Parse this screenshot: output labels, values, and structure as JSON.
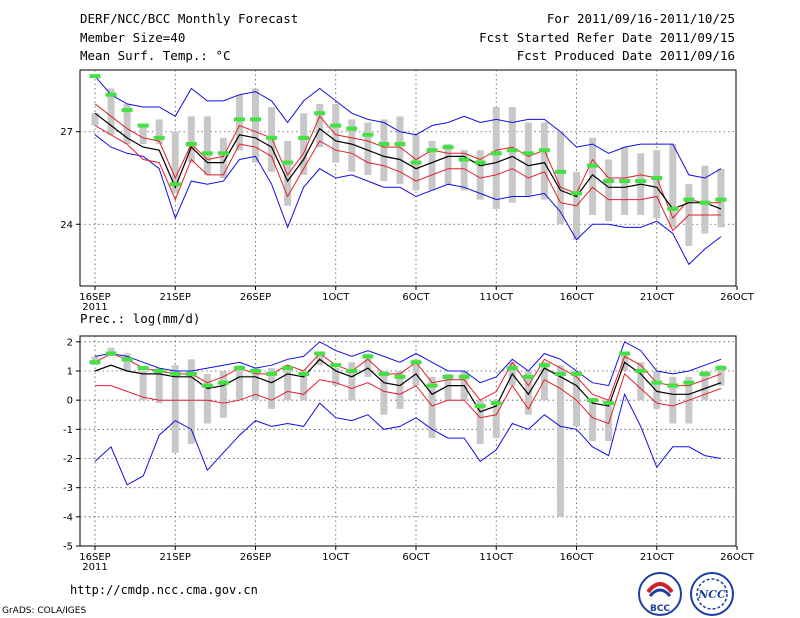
{
  "header": {
    "title": "DERF/NCC/BCC Monthly Forecast",
    "member": "Member Size=40",
    "variable": "Mean Surf. Temp.: °C",
    "period": "For 2011/09/16-2011/10/25",
    "started": "Fcst Started Refer Date 2011/09/15",
    "produced": "Fcst Produced Date 2011/09/16"
  },
  "footer": {
    "url": "http://cmdp.ncc.cma.gov.cn",
    "credit": "GrADS: COLA/IGES",
    "logo_left": "BCC",
    "logo_right": "NCC"
  },
  "colors": {
    "ensemble_mean": "#000000",
    "spread": "#e0202a",
    "extreme": "#1010e0",
    "observed_bar": "#c8c8c8",
    "climate": "#44e044"
  },
  "chart_data": [
    {
      "type": "line",
      "title": "Mean Surf. Temp.: °C",
      "ylim": [
        22,
        29
      ],
      "yticks": [
        24,
        27
      ],
      "xlabel": "",
      "xticks": [
        {
          "day": 0,
          "label": "16SEP",
          "sub": "2011"
        },
        {
          "day": 5,
          "label": "21SEP"
        },
        {
          "day": 10,
          "label": "26SEP"
        },
        {
          "day": 15,
          "label": "1OCT"
        },
        {
          "day": 20,
          "label": "6OCT"
        },
        {
          "day": 25,
          "label": "11OCT"
        },
        {
          "day": 30,
          "label": "16OCT"
        },
        {
          "day": 35,
          "label": "21OCT"
        },
        {
          "day": 40,
          "label": "26OCT"
        }
      ],
      "series": [
        {
          "name": "max",
          "values": [
            28.8,
            28.2,
            27.9,
            27.8,
            27.8,
            27.5,
            28.4,
            28.0,
            28.0,
            28.2,
            28.3,
            28.0,
            27.3,
            28.0,
            28.4,
            28.0,
            27.6,
            27.4,
            27.3,
            27.0,
            26.9,
            27.2,
            27.3,
            27.5,
            27.3,
            27.4,
            27.3,
            27.4,
            27.4,
            27.0,
            26.5,
            26.6,
            26.3,
            26.5,
            26.6,
            26.6,
            26.6,
            25.6,
            25.5,
            25.8
          ]
        },
        {
          "name": "upper",
          "values": [
            27.9,
            27.5,
            27.1,
            26.8,
            26.7,
            25.5,
            26.6,
            26.1,
            26.2,
            27.2,
            27.0,
            26.8,
            25.6,
            26.3,
            27.5,
            26.9,
            26.8,
            26.7,
            26.5,
            26.5,
            26.1,
            26.4,
            26.3,
            26.3,
            26.1,
            26.4,
            26.5,
            26.2,
            26.4,
            25.2,
            25.0,
            26.1,
            25.5,
            25.5,
            25.6,
            25.5,
            24.2,
            24.8,
            24.7,
            24.7
          ]
        },
        {
          "name": "mean",
          "values": [
            27.6,
            27.2,
            26.8,
            26.5,
            26.4,
            25.2,
            26.5,
            26.0,
            26.0,
            26.9,
            26.8,
            26.5,
            25.4,
            26.1,
            27.1,
            26.7,
            26.6,
            26.4,
            26.2,
            26.1,
            25.8,
            26.0,
            26.2,
            26.2,
            25.9,
            26.0,
            26.2,
            25.9,
            26.0,
            25.1,
            24.9,
            25.6,
            25.2,
            25.2,
            25.3,
            25.2,
            24.5,
            24.7,
            24.7,
            24.5
          ]
        },
        {
          "name": "lower",
          "values": [
            27.2,
            26.9,
            26.6,
            26.1,
            26.0,
            24.8,
            26.1,
            25.6,
            25.6,
            26.6,
            26.5,
            26.2,
            24.9,
            25.8,
            26.7,
            26.4,
            26.3,
            26.0,
            25.9,
            25.7,
            25.4,
            25.6,
            25.8,
            25.8,
            25.5,
            25.6,
            25.8,
            25.5,
            25.7,
            24.7,
            24.6,
            25.2,
            24.8,
            24.8,
            24.8,
            24.9,
            23.8,
            24.3,
            24.3,
            24.3
          ]
        },
        {
          "name": "min",
          "values": [
            26.9,
            26.5,
            26.3,
            26.2,
            25.8,
            24.2,
            25.4,
            25.3,
            25.4,
            26.1,
            26.2,
            25.3,
            23.9,
            25.2,
            25.8,
            25.5,
            25.6,
            25.4,
            25.2,
            25.2,
            24.9,
            25.1,
            25.3,
            25.2,
            25.0,
            24.8,
            24.9,
            24.9,
            25.0,
            24.4,
            23.5,
            24.0,
            24.0,
            23.9,
            23.9,
            24.1,
            23.7,
            22.7,
            23.2,
            23.6
          ]
        },
        {
          "name": "obs_bar_top",
          "values": [
            27.6,
            28.4,
            27.9,
            27.2,
            27.4,
            27.0,
            27.5,
            27.5,
            26.8,
            28.2,
            28.4,
            27.8,
            26.7,
            27.6,
            27.9,
            27.9,
            27.4,
            27.3,
            27.4,
            27.5,
            26.9,
            26.7,
            26.6,
            26.4,
            26.4,
            27.8,
            27.8,
            27.3,
            27.3,
            27.0,
            25.7,
            26.8,
            26.1,
            26.5,
            26.3,
            26.4,
            26.6,
            25.3,
            25.9,
            25.8
          ]
        },
        {
          "name": "obs_bar_bottom",
          "values": [
            27.2,
            26.9,
            26.6,
            26.6,
            26.6,
            25.0,
            26.0,
            25.6,
            25.5,
            26.4,
            26.0,
            25.7,
            24.6,
            25.6,
            26.5,
            26.0,
            25.7,
            25.6,
            25.4,
            25.3,
            25.1,
            25.1,
            25.3,
            25.1,
            24.8,
            24.5,
            24.7,
            24.9,
            24.8,
            24.0,
            23.5,
            24.3,
            24.1,
            24.3,
            24.3,
            24.2,
            23.9,
            23.3,
            23.7,
            23.9
          ]
        },
        {
          "name": "climate",
          "values": [
            28.8,
            28.2,
            27.7,
            27.2,
            26.8,
            25.3,
            26.6,
            26.3,
            26.3,
            27.4,
            27.4,
            26.8,
            26.0,
            26.8,
            27.6,
            27.2,
            27.1,
            26.9,
            26.6,
            26.6,
            26.0,
            26.4,
            26.5,
            26.1,
            26.0,
            26.3,
            26.4,
            26.3,
            26.4,
            25.7,
            25.0,
            25.9,
            25.4,
            25.4,
            25.4,
            25.5,
            24.5,
            24.8,
            24.7,
            24.8
          ]
        }
      ]
    },
    {
      "type": "line",
      "title": "Prec.: log(mm/d)",
      "ylim": [
        -5,
        2.2
      ],
      "yticks": [
        -5,
        -4,
        -3,
        -2,
        -1,
        0,
        1,
        2
      ],
      "xlabel": "",
      "xticks": [
        {
          "day": 0,
          "label": "16SEP",
          "sub": "2011"
        },
        {
          "day": 5,
          "label": "21SEP"
        },
        {
          "day": 10,
          "label": "26SEP"
        },
        {
          "day": 15,
          "label": "1OCT"
        },
        {
          "day": 20,
          "label": "6OCT"
        },
        {
          "day": 25,
          "label": "11OCT"
        },
        {
          "day": 30,
          "label": "16OCT"
        },
        {
          "day": 35,
          "label": "21OCT"
        },
        {
          "day": 40,
          "label": "26OCT"
        }
      ],
      "series": [
        {
          "name": "max",
          "values": [
            1.5,
            1.6,
            1.5,
            1.3,
            1.1,
            1.0,
            1.0,
            1.1,
            1.2,
            1.3,
            1.1,
            1.2,
            1.4,
            1.5,
            2.0,
            1.7,
            1.5,
            1.7,
            1.5,
            1.3,
            1.6,
            1.3,
            1.0,
            1.0,
            0.6,
            0.8,
            1.4,
            1.0,
            1.6,
            1.4,
            1.0,
            0.6,
            0.5,
            2.0,
            1.7,
            1.0,
            0.9,
            1.0,
            1.2,
            1.4
          ]
        },
        {
          "name": "upper",
          "values": [
            1.3,
            1.6,
            1.4,
            1.1,
            1.0,
            0.9,
            0.9,
            0.6,
            0.8,
            1.1,
            0.9,
            0.9,
            1.2,
            1.0,
            1.6,
            1.2,
            1.0,
            1.4,
            0.9,
            0.9,
            1.3,
            0.6,
            0.7,
            0.7,
            0.0,
            0.3,
            1.3,
            0.5,
            1.4,
            1.1,
            0.8,
            0.2,
            0.0,
            1.5,
            1.2,
            0.6,
            0.5,
            0.5,
            0.7,
            0.9
          ]
        },
        {
          "name": "mean",
          "values": [
            1.0,
            1.2,
            1.0,
            0.9,
            0.9,
            0.8,
            0.8,
            0.4,
            0.5,
            0.8,
            0.8,
            0.6,
            0.9,
            0.8,
            1.4,
            1.0,
            0.8,
            1.1,
            0.6,
            0.5,
            0.9,
            0.2,
            0.5,
            0.5,
            -0.4,
            -0.2,
            0.9,
            0.2,
            1.1,
            0.8,
            0.5,
            -0.1,
            -0.2,
            1.3,
            0.9,
            0.3,
            0.2,
            0.2,
            0.4,
            0.6
          ]
        },
        {
          "name": "lower",
          "values": [
            0.5,
            0.5,
            0.3,
            0.1,
            0.0,
            0.0,
            0.0,
            0.0,
            -0.1,
            0.0,
            0.2,
            0.0,
            0.3,
            0.2,
            0.7,
            0.6,
            0.4,
            0.6,
            0.3,
            0.2,
            0.5,
            -0.2,
            0.0,
            0.0,
            -0.6,
            -0.5,
            0.5,
            -0.3,
            0.7,
            0.4,
            0.0,
            -0.6,
            -0.8,
            0.9,
            0.4,
            -0.1,
            -0.2,
            0.0,
            0.2,
            0.4
          ]
        },
        {
          "name": "min",
          "values": [
            -2.1,
            -1.6,
            -2.9,
            -2.6,
            -1.2,
            -0.7,
            -1.0,
            -2.4,
            -1.8,
            -1.2,
            -0.7,
            -0.9,
            -0.8,
            -0.9,
            -0.1,
            -0.6,
            -0.7,
            -0.5,
            -1.0,
            -0.9,
            -0.6,
            -1.0,
            -1.3,
            -1.3,
            -2.1,
            -1.7,
            -0.8,
            -1.0,
            -0.5,
            -0.9,
            -1.0,
            -1.6,
            -1.9,
            0.2,
            -0.9,
            -2.3,
            -1.6,
            -1.6,
            -1.9,
            -2.0
          ]
        },
        {
          "name": "obs_bar_top",
          "values": [
            1.5,
            1.8,
            1.6,
            1.0,
            1.1,
            1.2,
            1.4,
            0.9,
            1.0,
            1.2,
            1.1,
            1.1,
            1.2,
            0.9,
            1.6,
            1.1,
            1.3,
            1.6,
            1.0,
            1.0,
            1.4,
            0.8,
            0.9,
            1.0,
            0.0,
            0.0,
            1.3,
            1.0,
            1.3,
            1.2,
            1.0,
            0.0,
            0.0,
            1.6,
            1.3,
            1.0,
            0.8,
            0.8,
            1.0,
            1.2
          ]
        },
        {
          "name": "obs_bar_bottom",
          "values": [
            1.2,
            1.5,
            1.0,
            0.0,
            -0.1,
            -1.8,
            -1.5,
            -0.8,
            -0.6,
            0.0,
            0.0,
            -0.3,
            0.0,
            0.0,
            1.2,
            0.5,
            0.0,
            0.8,
            -0.5,
            -0.3,
            0.5,
            -1.3,
            0.0,
            0.0,
            -1.5,
            -1.3,
            0.5,
            -0.5,
            0.0,
            -4.0,
            -0.9,
            -1.4,
            -1.4,
            1.0,
            0.0,
            -0.3,
            -0.8,
            -0.8,
            0.0,
            0.5
          ]
        },
        {
          "name": "climate",
          "values": [
            1.3,
            1.6,
            1.4,
            1.1,
            1.0,
            0.9,
            0.9,
            0.5,
            0.6,
            1.1,
            1.0,
            0.9,
            1.1,
            0.9,
            1.6,
            1.2,
            1.0,
            1.5,
            0.9,
            0.8,
            1.3,
            0.5,
            0.8,
            0.8,
            -0.2,
            -0.1,
            1.1,
            0.8,
            1.2,
            0.9,
            0.9,
            0.0,
            -0.1,
            1.6,
            1.0,
            0.6,
            0.5,
            0.6,
            0.9,
            1.1
          ]
        }
      ]
    }
  ],
  "panel2_label": "Prec.: log(mm/d)"
}
